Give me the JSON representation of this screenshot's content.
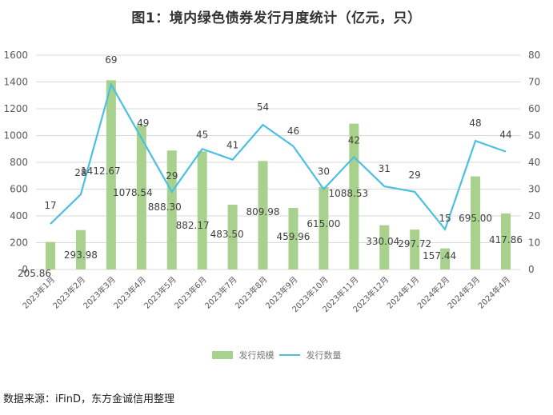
{
  "title": "图1：境内绿色债券发行月度统计（亿元，只）",
  "source": "数据来源：iFinD，东方金诚信用整理",
  "legend": {
    "bar_label": "发行规模",
    "line_label": "发行数量"
  },
  "colors": {
    "bar": "#a9d18e",
    "line": "#4bc0e0",
    "grid": "#d9d9d9"
  },
  "chart_data": {
    "type": "bar+line",
    "title": "图1：境内绿色债券发行月度统计（亿元，只）",
    "categories": [
      "2023年1月",
      "2023年2月",
      "2023年3月",
      "2023年4月",
      "2023年5月",
      "2023年6月",
      "2023年7月",
      "2023年8月",
      "2023年9月",
      "2023年10月",
      "2023年11月",
      "2023年12月",
      "2024年1月",
      "2024年2月",
      "2024年3月",
      "2024年4月"
    ],
    "series": [
      {
        "name": "发行规模",
        "type": "bar",
        "axis": "left",
        "values": [
          205.86,
          293.98,
          1412.67,
          1078.54,
          888.3,
          882.17,
          483.5,
          809.98,
          459.96,
          615.0,
          1088.53,
          330.04,
          297.72,
          157.44,
          695.0,
          417.86
        ]
      },
      {
        "name": "发行数量",
        "type": "line",
        "axis": "right",
        "values": [
          17,
          28,
          69,
          49,
          29,
          45,
          41,
          54,
          46,
          30,
          42,
          31,
          29,
          15,
          48,
          44
        ]
      }
    ],
    "bar_labels": [
      "205.86",
      "293.98",
      "1412.67",
      "1078.54",
      "888.30",
      "882.17",
      "483.50",
      "809.98",
      "459.96",
      "615.00",
      "1088.53",
      "330.04",
      "297.72",
      "157.44",
      "695.00",
      "417.86"
    ],
    "left_axis": {
      "ylim": [
        0,
        1600
      ],
      "ticks": [
        0,
        200,
        400,
        600,
        800,
        1000,
        1200,
        1400,
        1600
      ]
    },
    "right_axis": {
      "ylim": [
        0,
        80
      ],
      "ticks": [
        0,
        10,
        20,
        30,
        40,
        50,
        60,
        70,
        80
      ]
    },
    "xlabel": "",
    "ylabel": "",
    "grid": true,
    "legend_position": "bottom"
  }
}
